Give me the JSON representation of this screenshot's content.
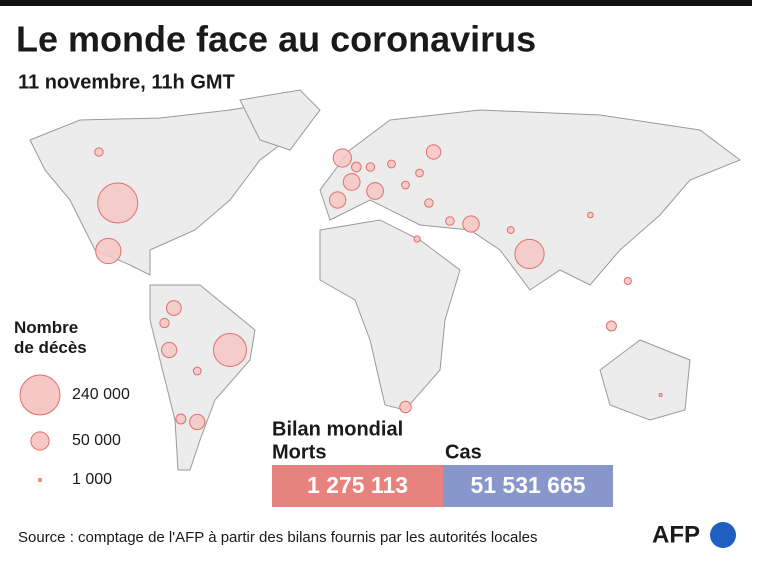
{
  "chart_data": {
    "type": "bubble_map",
    "title": "Le monde face au coronavirus",
    "subtitle": "11 novembre, 11h GMT",
    "bubble_color": "#f6c7c4",
    "bubble_stroke": "#e0706a",
    "legend": {
      "title": "Nombre de décès",
      "sizes": [
        {
          "value": 240000,
          "label": "240 000"
        },
        {
          "value": 50000,
          "label": "50 000"
        },
        {
          "value": 1000,
          "label": "1 000"
        }
      ]
    },
    "points": [
      {
        "lon": -98,
        "lat": 39,
        "value": 240000
      },
      {
        "lon": -50,
        "lat": -10,
        "value": 163000
      },
      {
        "lon": 78,
        "lat": 22,
        "value": 128000
      },
      {
        "lon": -102,
        "lat": 23,
        "value": 96000
      },
      {
        "lon": -76,
        "lat": -10,
        "value": 35000
      },
      {
        "lon": -64,
        "lat": -34,
        "value": 35000
      },
      {
        "lon": -74,
        "lat": 4,
        "value": 33000
      },
      {
        "lon": -71,
        "lat": -33,
        "value": 15000
      },
      {
        "lon": -78,
        "lat": -1,
        "value": 13000
      },
      {
        "lon": -64,
        "lat": -17,
        "value": 9000
      },
      {
        "lon": -106,
        "lat": 56,
        "value": 10500
      },
      {
        "lon": -2,
        "lat": 54,
        "value": 50000
      },
      {
        "lon": 2,
        "lat": 46,
        "value": 42000
      },
      {
        "lon": 12,
        "lat": 43,
        "value": 42000
      },
      {
        "lon": -4,
        "lat": 40,
        "value": 40000
      },
      {
        "lon": 4,
        "lat": 51,
        "value": 14000
      },
      {
        "lon": 10,
        "lat": 51,
        "value": 11000
      },
      {
        "lon": 37,
        "lat": 56,
        "value": 31000
      },
      {
        "lon": 53,
        "lat": 32,
        "value": 40000
      },
      {
        "lon": 35,
        "lat": 39,
        "value": 11000
      },
      {
        "lon": 44,
        "lat": 33,
        "value": 11000
      },
      {
        "lon": 30,
        "lat": 27,
        "value": 6000
      },
      {
        "lon": 25,
        "lat": -29,
        "value": 20000
      },
      {
        "lon": 70,
        "lat": 30,
        "value": 7000
      },
      {
        "lon": 120,
        "lat": 13,
        "value": 7500
      },
      {
        "lon": 113,
        "lat": -2,
        "value": 15000
      },
      {
        "lon": 104,
        "lat": 35,
        "value": 4700
      },
      {
        "lon": 19,
        "lat": 52,
        "value": 9000
      },
      {
        "lon": 31,
        "lat": 49,
        "value": 9000
      },
      {
        "lon": 25,
        "lat": 45,
        "value": 9000
      },
      {
        "lon": 134,
        "lat": -25,
        "value": 900
      }
    ],
    "summary": {
      "title": "Bilan mondial",
      "items": [
        {
          "name": "Morts",
          "value": 1275113,
          "value_label": "1 275 113",
          "color": "#e8827e"
        },
        {
          "name": "Cas",
          "value": 51531665,
          "value_label": "51 531 665",
          "color": "#8797cc"
        }
      ]
    },
    "source": "Source : comptage de l'AFP à partir des bilans fournis par les autorités locales",
    "logo": "AFP"
  }
}
